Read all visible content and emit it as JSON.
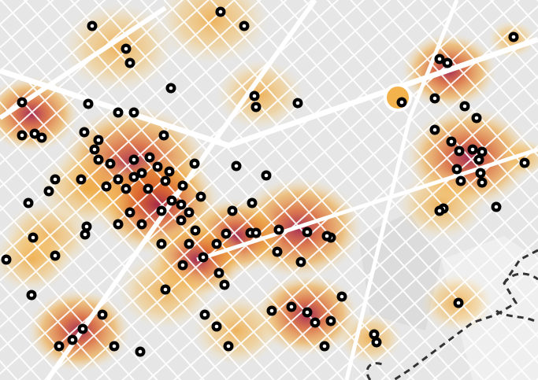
{
  "map": {
    "type": "street-grid heatmap with point markers",
    "legend": "",
    "title": "",
    "colors": {
      "background_block": "#e6e6e6",
      "street": "#ffffff",
      "heat_low": "#fbe2a6",
      "heat_mid": "#f0a12e",
      "heat_high": "#d8541e",
      "heat_peak": "#9b0f3c",
      "marker_ring": "#000000",
      "marker_center": "#ffffff",
      "coastline": "#333333"
    },
    "icons": {
      "marker": "poi-marker-icon",
      "coastline": "dashed-boundary-icon"
    }
  }
}
